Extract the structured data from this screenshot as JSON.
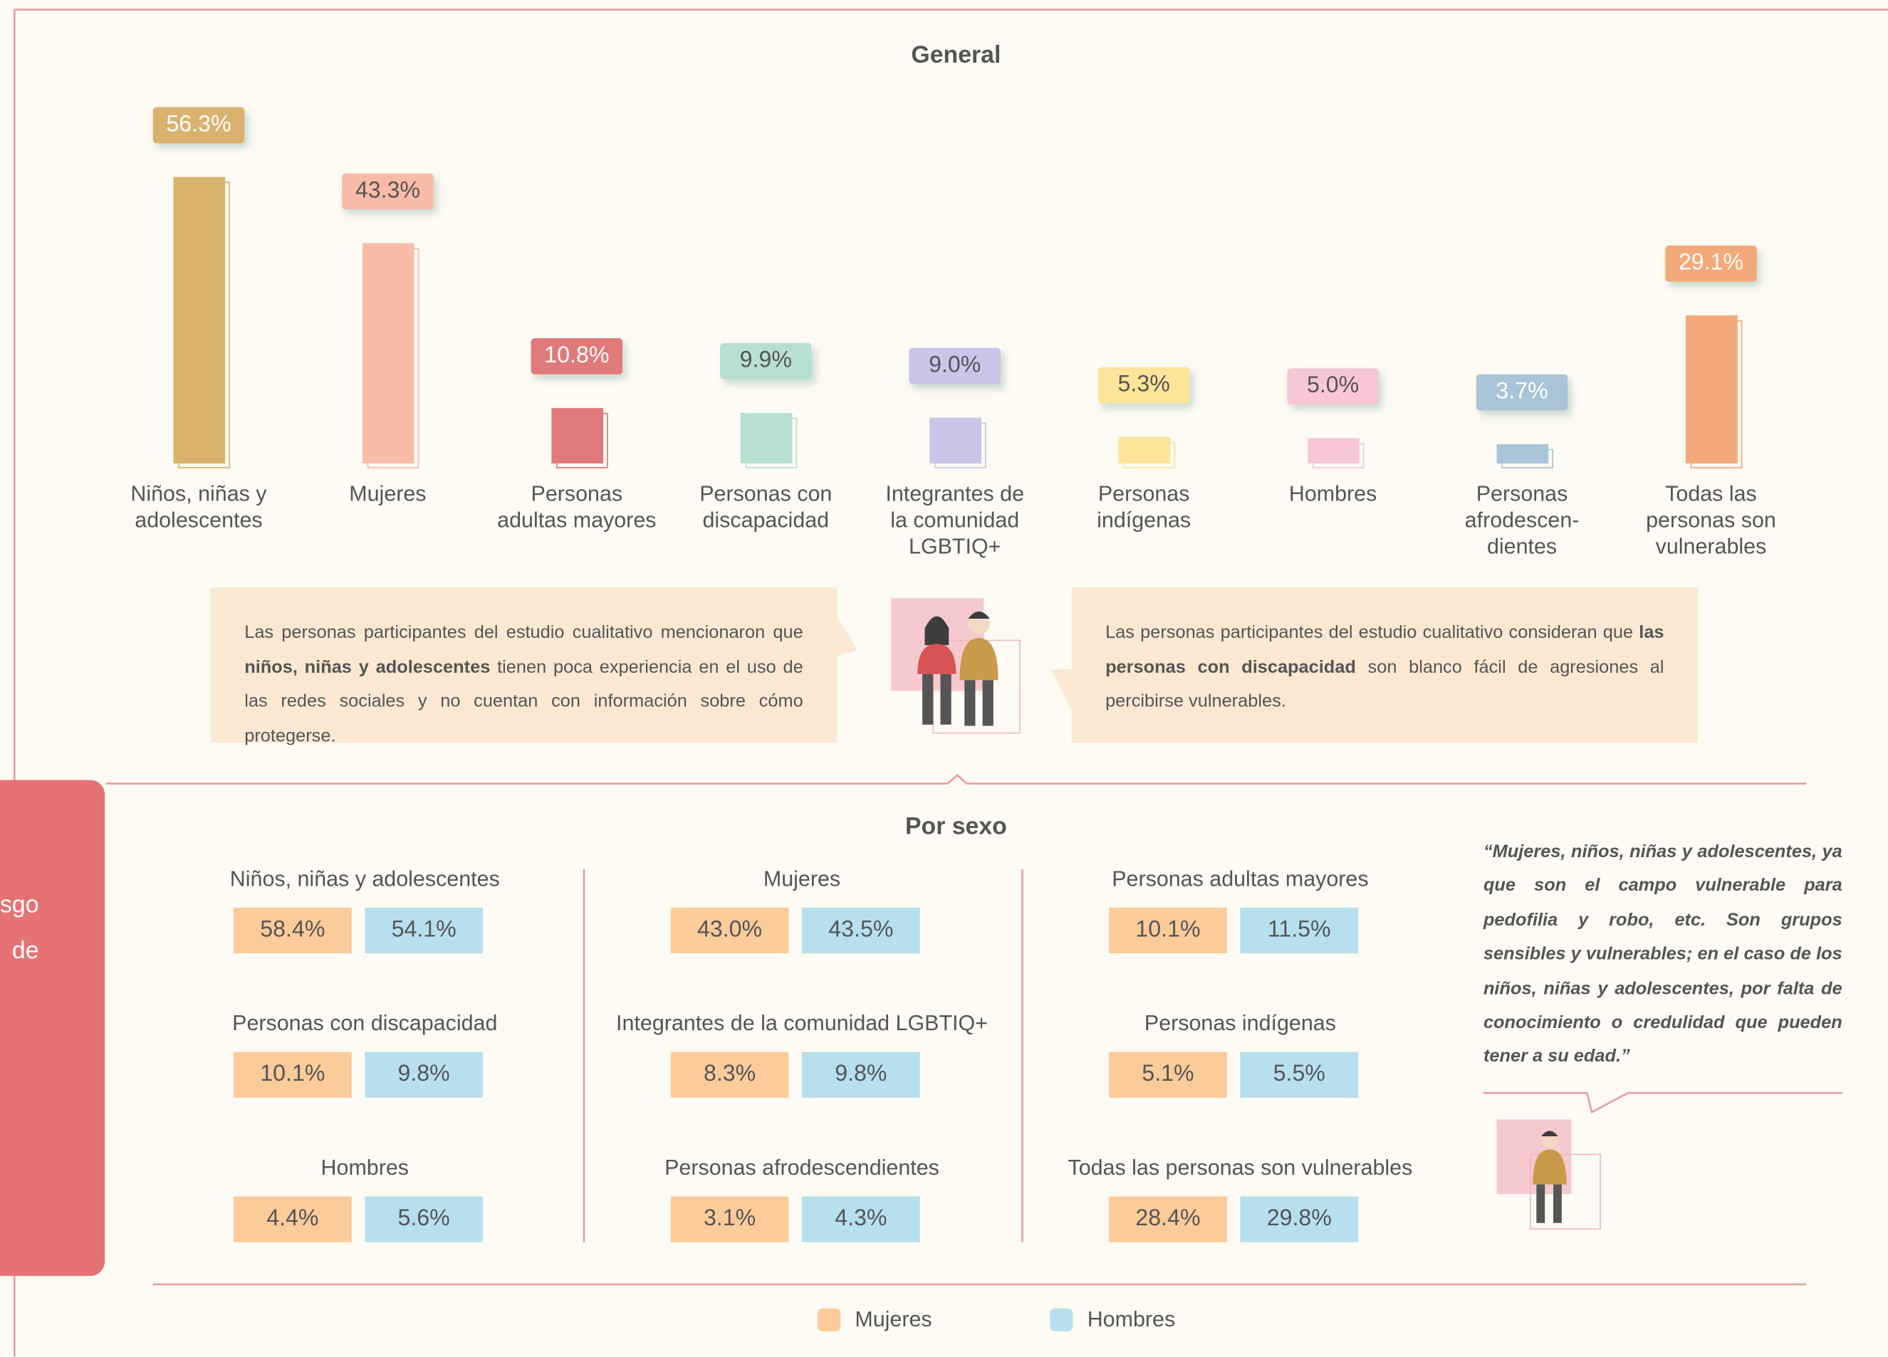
{
  "chart_data": [
    {
      "type": "bar",
      "title": "General",
      "categories": [
        "Niños, niñas y\nadolescentes",
        "Mujeres",
        "Personas\nadultas mayores",
        "Personas con\ndiscapacidad",
        "Integrantes de\nla comunidad\nLGBTIQ+",
        "Personas\nindígenas",
        "Hombres",
        "Personas\nafrodescen-\ndientes",
        "Todas las\npersonas son\nvulnerables"
      ],
      "values": [
        56.3,
        43.3,
        10.8,
        9.9,
        9.0,
        5.3,
        5.0,
        3.7,
        29.1
      ],
      "value_labels": [
        "56.3%",
        "43.3%",
        "10.8%",
        "9.9%",
        "9.0%",
        "5.3%",
        "5.0%",
        "3.7%",
        "29.1%"
      ],
      "colors": [
        "#d9b26e",
        "#f8bca8",
        "#e07a7a",
        "#b8e0d2",
        "#cac6ea",
        "#fde49a",
        "#f7c7d6",
        "#a9c4d6",
        "#f4a97a"
      ]
    },
    {
      "type": "grouped-boxes",
      "title": "Por sexo",
      "series": [
        {
          "name": "Mujeres",
          "color": "#fccb9a"
        },
        {
          "name": "Hombres",
          "color": "#b7e0ef"
        }
      ],
      "groups": [
        {
          "name": "Niños, niñas y adolescentes",
          "values": [
            58.4,
            54.1
          ],
          "value_labels": [
            "58.4%",
            "54.1%"
          ]
        },
        {
          "name": "Mujeres",
          "values": [
            43.0,
            43.5
          ],
          "value_labels": [
            "43.0%",
            "43.5%"
          ]
        },
        {
          "name": "Personas adultas mayores",
          "values": [
            10.1,
            11.5
          ],
          "value_labels": [
            "10.1%",
            "11.5%"
          ]
        },
        {
          "name": "Personas con discapacidad",
          "values": [
            10.1,
            9.8
          ],
          "value_labels": [
            "10.1%",
            "9.8%"
          ]
        },
        {
          "name": "Integrantes de la comunidad LGBTIQ+",
          "values": [
            8.3,
            9.8
          ],
          "value_labels": [
            "8.3%",
            "9.8%"
          ]
        },
        {
          "name": "Personas indígenas",
          "values": [
            5.1,
            5.5
          ],
          "value_labels": [
            "5.1%",
            "5.5%"
          ]
        },
        {
          "name": "Hombres",
          "values": [
            4.4,
            5.6
          ],
          "value_labels": [
            "4.4%",
            "5.6%"
          ]
        },
        {
          "name": "Personas afrodescendientes",
          "values": [
            3.1,
            4.3
          ],
          "value_labels": [
            "3.1%",
            "4.3%"
          ]
        },
        {
          "name": "Todas las personas son vulnerables",
          "values": [
            28.4,
            29.8
          ],
          "value_labels": [
            "28.4%",
            "29.8%"
          ]
        }
      ]
    }
  ],
  "notes": [
    [
      "Las personas participantes del estudio cualitativo mencionaron que ",
      "niños, niñas y adolescentes",
      " tienen poca experiencia en el uso de las redes sociales y no cuentan con información sobre cómo protegerse."
    ],
    [
      "Las personas participantes del estudio cualitativo consideran que ",
      "las personas con discapacidad",
      " son blanco fácil de agresiones al percibirse vulnerables."
    ]
  ],
  "quote": "“Mujeres, niños, niñas y adolescentes, ya que son el campo vulnerable para pedofilia y robo, etc. Son grupos sensibles y vulnerables; en el caso de los niños, niñas y adolescentes, por falta de conocimiento o credulidad que pueden tener a su edad.”",
  "side_label": [
    "sgo",
    "de"
  ]
}
